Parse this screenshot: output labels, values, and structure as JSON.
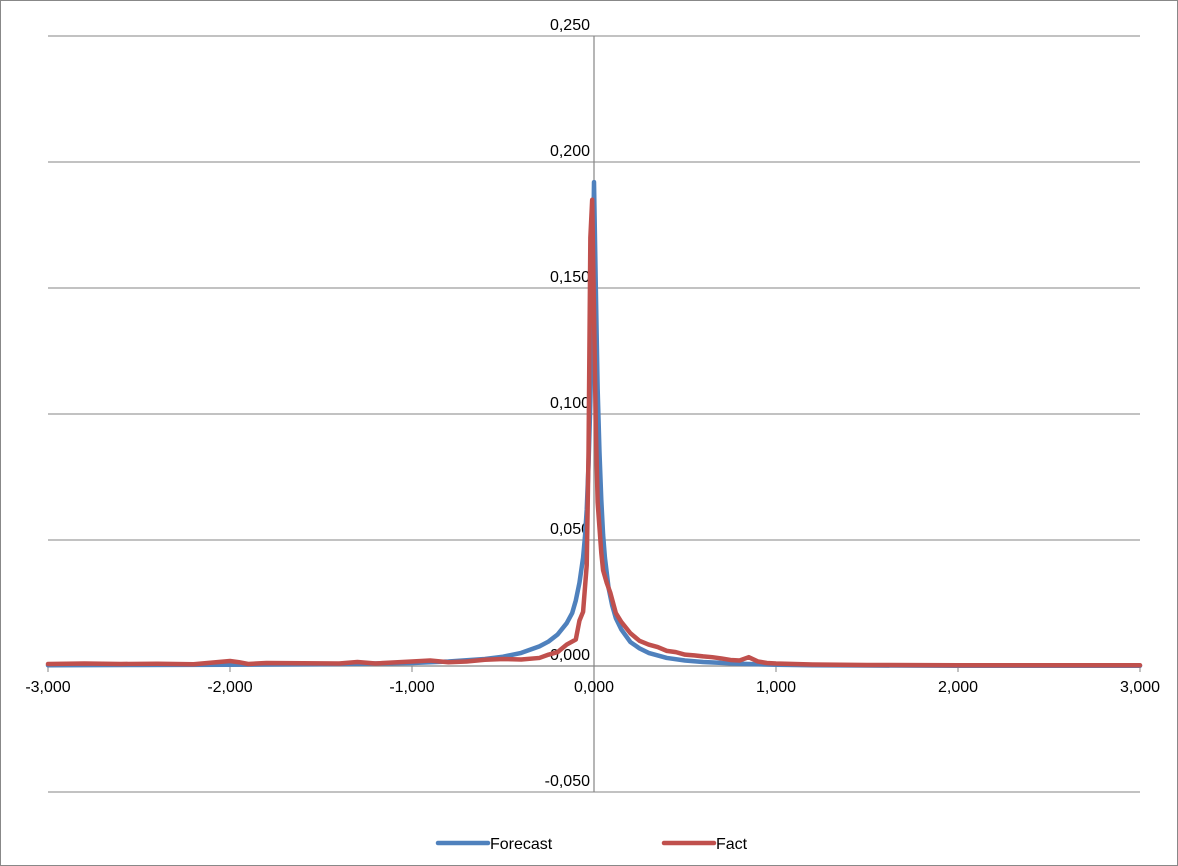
{
  "chart_data": {
    "type": "line",
    "title": "",
    "xlabel": "",
    "ylabel": "",
    "xlim": [
      -3,
      3
    ],
    "ylim": [
      -0.05,
      0.25
    ],
    "x_ticks": [
      -3,
      -2,
      -1,
      0,
      1,
      2,
      3
    ],
    "x_tick_labels": [
      "-3,000",
      "-2,000",
      "-1,000",
      "0,000",
      "1,000",
      "2,000",
      "3,000"
    ],
    "y_ticks": [
      -0.05,
      0,
      0.05,
      0.1,
      0.15,
      0.2,
      0.25
    ],
    "y_tick_labels": [
      "-0,050",
      "0,000",
      "0,050",
      "0,100",
      "0,150",
      "0,200",
      "0,250"
    ],
    "grid": "horizontal",
    "legend_position": "bottom",
    "series": [
      {
        "name": "Forecast",
        "color": "#4F81BD",
        "x": [
          -3.0,
          -2.5,
          -2.0,
          -1.5,
          -1.0,
          -0.8,
          -0.6,
          -0.5,
          -0.4,
          -0.3,
          -0.25,
          -0.2,
          -0.15,
          -0.12,
          -0.1,
          -0.08,
          -0.06,
          -0.05,
          -0.04,
          -0.03,
          -0.02,
          -0.01,
          0.0,
          0.01,
          0.02,
          0.03,
          0.04,
          0.05,
          0.06,
          0.08,
          0.1,
          0.12,
          0.15,
          0.2,
          0.25,
          0.3,
          0.4,
          0.5,
          0.6,
          0.8,
          1.0,
          1.2,
          1.5,
          2.0,
          2.5,
          3.0
        ],
        "y": [
          0.0003,
          0.0004,
          0.0005,
          0.0007,
          0.0012,
          0.0018,
          0.0028,
          0.0037,
          0.0052,
          0.0078,
          0.0097,
          0.0125,
          0.017,
          0.021,
          0.026,
          0.033,
          0.043,
          0.051,
          0.062,
          0.08,
          0.105,
          0.14,
          0.192,
          0.15,
          0.11,
          0.085,
          0.066,
          0.052,
          0.043,
          0.031,
          0.024,
          0.019,
          0.0145,
          0.0095,
          0.007,
          0.0052,
          0.0032,
          0.0022,
          0.0016,
          0.0009,
          0.0005,
          0.0003,
          0.0002,
          0.0001,
          0.0001,
          0.0001
        ]
      },
      {
        "name": "Fact",
        "color": "#C0504D",
        "x": [
          -3.0,
          -2.8,
          -2.6,
          -2.4,
          -2.2,
          -2.0,
          -1.95,
          -1.9,
          -1.8,
          -1.6,
          -1.4,
          -1.3,
          -1.2,
          -1.0,
          -0.9,
          -0.8,
          -0.7,
          -0.6,
          -0.5,
          -0.4,
          -0.3,
          -0.25,
          -0.2,
          -0.15,
          -0.1,
          -0.08,
          -0.06,
          -0.04,
          -0.03,
          -0.02,
          -0.01,
          0.0,
          0.01,
          0.02,
          0.03,
          0.04,
          0.05,
          0.07,
          0.09,
          0.12,
          0.15,
          0.2,
          0.25,
          0.3,
          0.35,
          0.4,
          0.45,
          0.5,
          0.55,
          0.6,
          0.65,
          0.7,
          0.75,
          0.8,
          0.85,
          0.9,
          0.95,
          1.0,
          1.2,
          1.5,
          2.0,
          2.5,
          3.0
        ],
        "y": [
          0.0008,
          0.001,
          0.0008,
          0.0009,
          0.0007,
          0.002,
          0.0015,
          0.0008,
          0.0012,
          0.0011,
          0.001,
          0.0016,
          0.001,
          0.0018,
          0.0022,
          0.0015,
          0.0018,
          0.0025,
          0.0028,
          0.0026,
          0.0032,
          0.0045,
          0.0055,
          0.0085,
          0.0105,
          0.018,
          0.0215,
          0.04,
          0.085,
          0.17,
          0.185,
          0.14,
          0.095,
          0.065,
          0.055,
          0.045,
          0.038,
          0.033,
          0.029,
          0.021,
          0.0175,
          0.013,
          0.01,
          0.0085,
          0.0075,
          0.006,
          0.0055,
          0.0045,
          0.0042,
          0.0038,
          0.0035,
          0.003,
          0.0024,
          0.0022,
          0.0035,
          0.0018,
          0.0012,
          0.001,
          0.0006,
          0.0004,
          0.0003,
          0.0003,
          0.0003
        ]
      }
    ]
  }
}
